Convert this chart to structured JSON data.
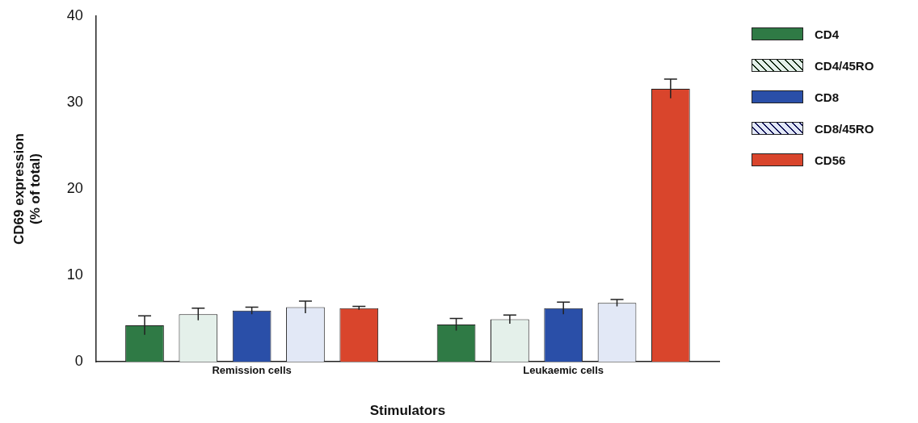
{
  "chart_data": {
    "type": "bar",
    "xlabel": "Stimulators",
    "ylabel": "CD69 expression (% of total)",
    "categories": [
      "Remission cells",
      "Leukaemic cells"
    ],
    "series": [
      {
        "name": "CD4",
        "color": "#2f7a45",
        "values": [
          4.2,
          4.3
        ],
        "errors": [
          1.1,
          0.7
        ]
      },
      {
        "name": "CD4/45RO",
        "color": "#e4f0ea",
        "values": [
          5.5,
          4.9
        ],
        "errors": [
          0.7,
          0.5
        ]
      },
      {
        "name": "CD8",
        "color": "#2a4fa8",
        "values": [
          5.9,
          6.2
        ],
        "errors": [
          0.4,
          0.7
        ]
      },
      {
        "name": "CD8/45RO",
        "color": "#e2e8f6",
        "values": [
          6.3,
          6.8
        ],
        "errors": [
          0.7,
          0.4
        ]
      },
      {
        "name": "CD56",
        "color": "#d9452c",
        "values": [
          6.2,
          31.6
        ],
        "errors": [
          0.2,
          1.1
        ]
      }
    ],
    "ylim": [
      0,
      40
    ],
    "yticks": [
      0,
      10,
      20,
      30,
      40
    ],
    "grid": false,
    "legend": "right"
  }
}
